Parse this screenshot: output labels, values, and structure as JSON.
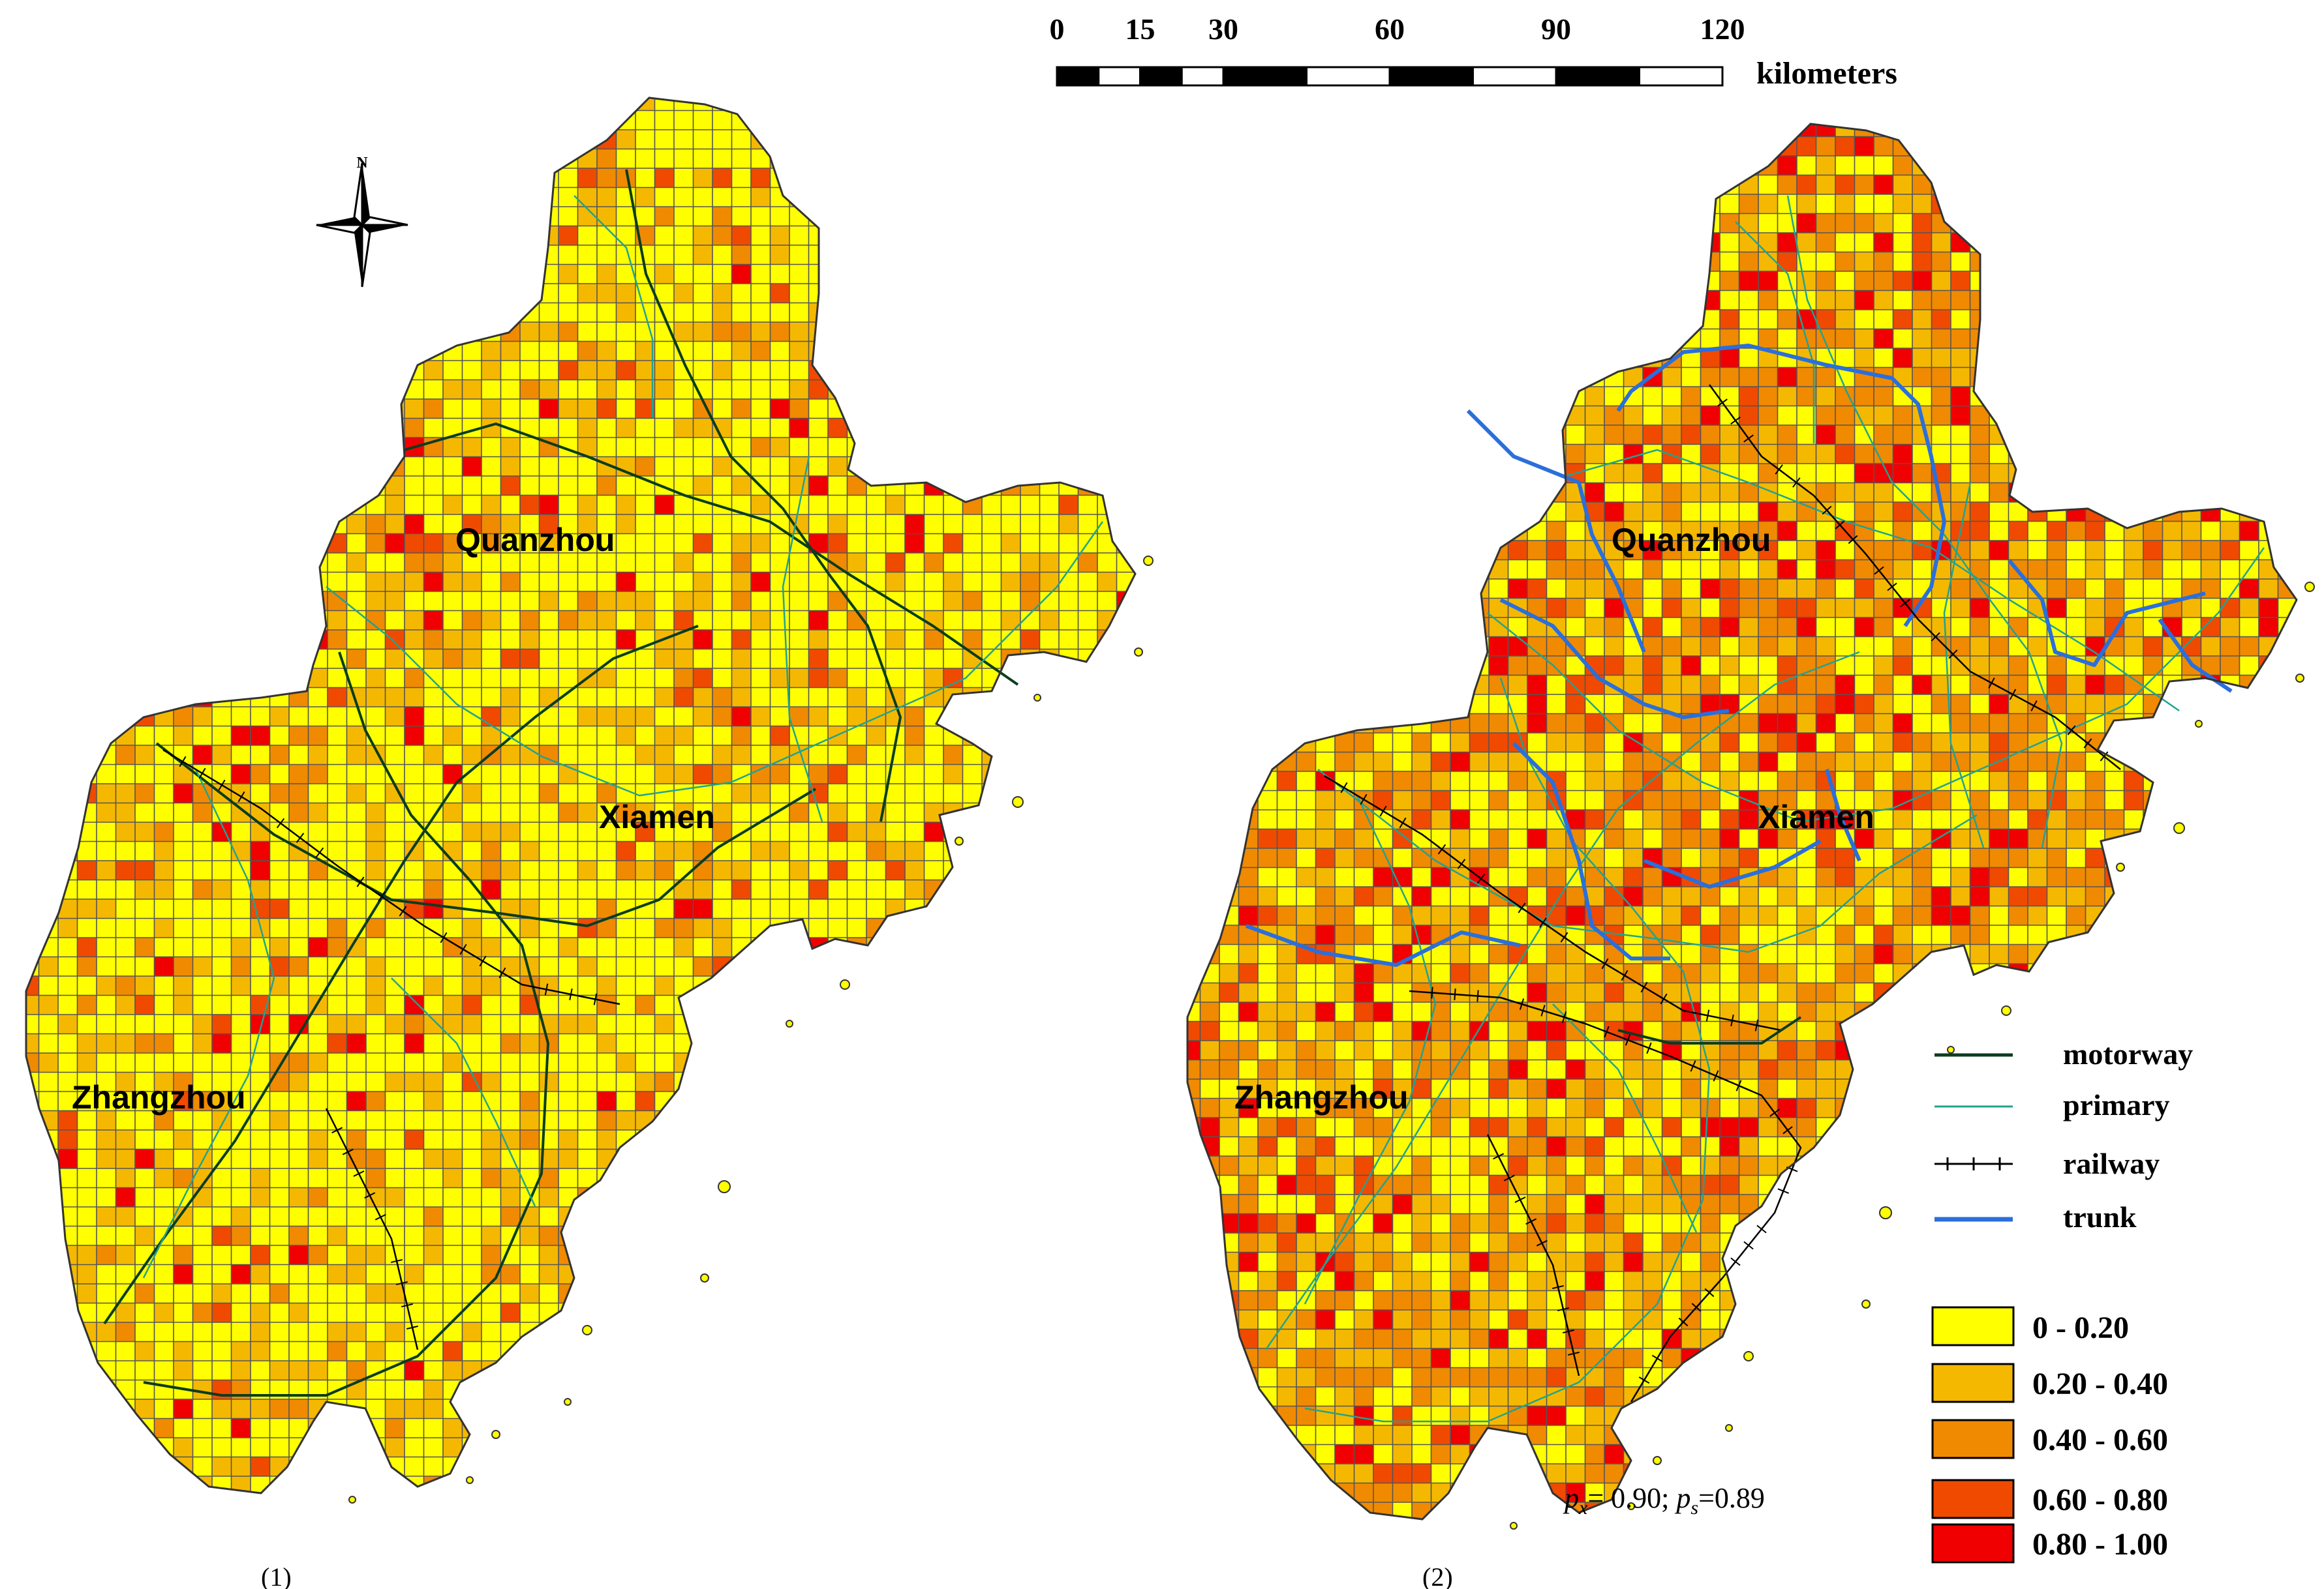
{
  "scale_bar": {
    "ticks": [
      "0",
      "15",
      "30",
      "60",
      "90",
      "120"
    ],
    "tick_values": [
      0,
      15,
      30,
      60,
      90,
      120
    ],
    "unit": "kilometers"
  },
  "north_arrow": {
    "label": "N",
    "icon": "compass-rose-icon"
  },
  "panels": [
    {
      "id": "panel-1",
      "caption": "(1)",
      "cities": [
        "Quanzhou",
        "Xiamen",
        "Zhangzhou"
      ]
    },
    {
      "id": "panel-2",
      "caption": "(2)",
      "cities": [
        "Quanzhou",
        "Xiamen",
        "Zhangzhou"
      ],
      "stat": {
        "px_symbol": "p",
        "px_sub": "x",
        "px_value": "= 0.90; ",
        "ps_symbol": "p",
        "ps_sub": "s",
        "ps_value": "=0.89"
      }
    }
  ],
  "road_legend": [
    {
      "label": "motorway",
      "color": "#0b3d1f",
      "style": "solid"
    },
    {
      "label": "primary",
      "color": "#21a38f",
      "style": "thin"
    },
    {
      "label": "railway",
      "color": "#000000",
      "style": "ticked"
    },
    {
      "label": "trunk",
      "color": "#2a6fdb",
      "style": "thick"
    }
  ],
  "class_legend": [
    {
      "label": "0 - 0.20",
      "color": "#ffff00"
    },
    {
      "label": "0.20 - 0.40",
      "color": "#f5b800"
    },
    {
      "label": "0.40 - 0.60",
      "color": "#f08a00"
    },
    {
      "label": "0.60 - 0.80",
      "color": "#f04a00"
    },
    {
      "label": "0.80 - 1.00",
      "color": "#f00000"
    }
  ],
  "grid_line_color": "#555555"
}
